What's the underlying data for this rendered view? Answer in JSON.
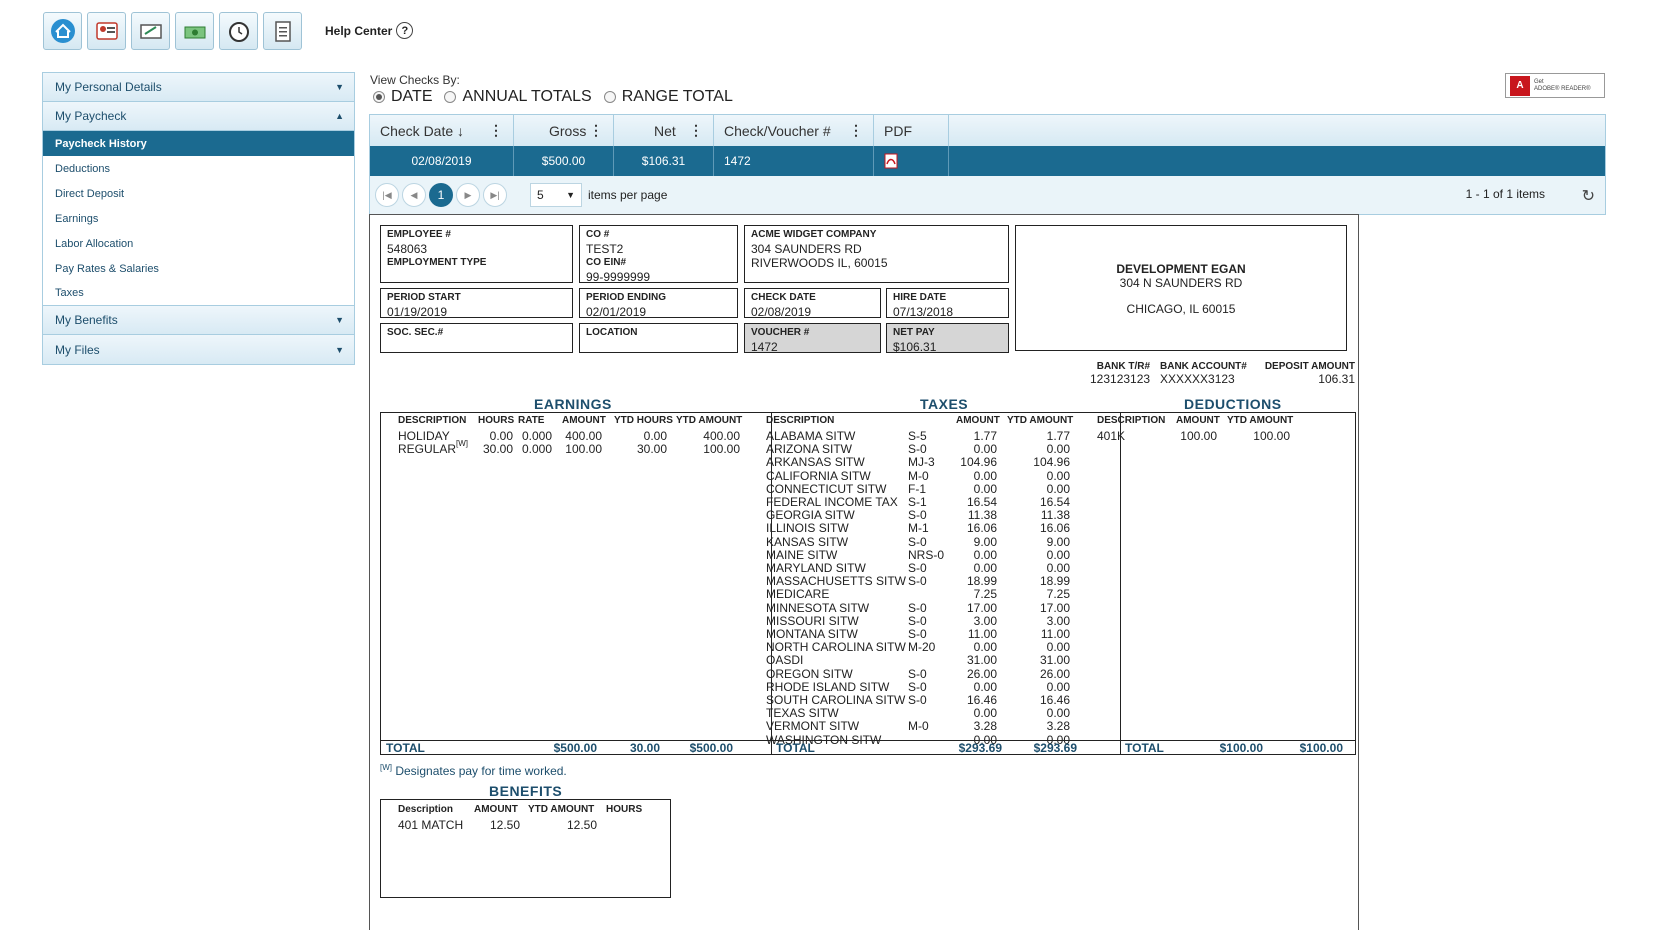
{
  "toolbar": {
    "icons": [
      "home-icon",
      "profile-icon",
      "paycheck-icon",
      "money-icon",
      "clock-icon",
      "clipboard-icon"
    ],
    "help_label": "Help Center",
    "help_glyph": "?"
  },
  "sidebar": {
    "sections": [
      {
        "label": "My Personal Details",
        "state": "collapsed"
      },
      {
        "label": "My Paycheck",
        "state": "expanded"
      },
      {
        "label": "My Benefits",
        "state": "collapsed"
      },
      {
        "label": "My Files",
        "state": "collapsed"
      }
    ],
    "paycheck_items": [
      "Paycheck History",
      "Deductions",
      "Direct Deposit",
      "Earnings",
      "Labor Allocation",
      "Pay Rates & Salaries",
      "Taxes"
    ],
    "active_item": "Paycheck History"
  },
  "view_by": {
    "label": "View Checks By:",
    "options": [
      "DATE",
      "ANNUAL TOTALS",
      "RANGE TOTAL"
    ],
    "selected": "DATE"
  },
  "adobe": {
    "get": "Get",
    "name": "ADOBE® READER®"
  },
  "grid": {
    "columns": [
      "Check Date",
      "Gross",
      "Net",
      "Check/Voucher #",
      "PDF"
    ],
    "row": {
      "date": "02/08/2019",
      "gross": "$500.00",
      "net": "$106.31",
      "voucher": "1472"
    },
    "pager": {
      "page": "1",
      "per_page": "5",
      "per_page_label": "items per page",
      "info": "1 - 1 of 1 items"
    }
  },
  "stub": {
    "employee": {
      "label": "EMPLOYEE #",
      "value": "548063",
      "type_label": "EMPLOYMENT TYPE"
    },
    "co": {
      "label": "CO #",
      "value": "TEST2",
      "ein_label": "CO EIN#",
      "ein": "99-9999999"
    },
    "company": {
      "name": "ACME WIDGET COMPANY",
      "line1": "304 SAUNDERS RD",
      "line2": "RIVERWOODS  IL,  60015"
    },
    "payee": {
      "name": "DEVELOPMENT EGAN",
      "line1": "304 N SAUNDERS RD",
      "line2": "CHICAGO, IL 60015"
    },
    "period_start": {
      "label": "PERIOD START",
      "value": "01/19/2019"
    },
    "period_ending": {
      "label": "PERIOD ENDING",
      "value": "02/01/2019"
    },
    "check_date": {
      "label": "CHECK DATE",
      "value": "02/08/2019"
    },
    "hire_date": {
      "label": "HIRE DATE",
      "value": "07/13/2018"
    },
    "ssn": {
      "label": "SOC. SEC.#"
    },
    "location": {
      "label": "LOCATION"
    },
    "voucher": {
      "label": "VOUCHER #",
      "value": "1472"
    },
    "net_pay": {
      "label": "NET PAY",
      "value": "$106.31"
    },
    "bank": {
      "tr_label": "BANK T/R#",
      "tr": "123123123",
      "acct_label": "BANK ACCOUNT#",
      "acct": "XXXXXX3123",
      "dep_label": "DEPOSIT AMOUNT",
      "dep": "106.31"
    }
  },
  "earnings": {
    "title": "EARNINGS",
    "headers": [
      "DESCRIPTION",
      "HOURS",
      "RATE",
      "AMOUNT",
      "YTD HOURS",
      "YTD AMOUNT"
    ],
    "rows": [
      {
        "desc": "HOLIDAY",
        "mark": "",
        "hours": "0.00",
        "rate": "0.000",
        "amount": "400.00",
        "ytd_hours": "0.00",
        "ytd_amount": "400.00"
      },
      {
        "desc": "REGULAR",
        "mark": "[W]",
        "hours": "30.00",
        "rate": "0.000",
        "amount": "100.00",
        "ytd_hours": "30.00",
        "ytd_amount": "100.00"
      }
    ],
    "total": {
      "label": "TOTAL",
      "amount": "$500.00",
      "hours": "30.00",
      "ytd": "$500.00"
    }
  },
  "taxes": {
    "title": "TAXES",
    "headers": [
      "DESCRIPTION",
      "AMOUNT",
      "YTD AMOUNT"
    ],
    "rows": [
      [
        "ALABAMA SITW",
        "S-5",
        "1.77",
        "1.77"
      ],
      [
        "ARIZONA SITW",
        "S-0",
        "0.00",
        "0.00"
      ],
      [
        "ARKANSAS SITW",
        "MJ-3",
        "104.96",
        "104.96"
      ],
      [
        "CALIFORNIA SITW",
        "M-0",
        "0.00",
        "0.00"
      ],
      [
        "CONNECTICUT SITW",
        "F-1",
        "0.00",
        "0.00"
      ],
      [
        "FEDERAL INCOME TAX",
        "S-1",
        "16.54",
        "16.54"
      ],
      [
        "GEORGIA SITW",
        "S-0",
        "11.38",
        "11.38"
      ],
      [
        "ILLINOIS SITW",
        "M-1",
        "16.06",
        "16.06"
      ],
      [
        "KANSAS SITW",
        "S-0",
        "9.00",
        "9.00"
      ],
      [
        "MAINE SITW",
        "NRS-0",
        "0.00",
        "0.00"
      ],
      [
        "MARYLAND SITW",
        "S-0",
        "0.00",
        "0.00"
      ],
      [
        "MASSACHUSETTS SITW",
        "S-0",
        "18.99",
        "18.99"
      ],
      [
        "MEDICARE",
        "",
        "7.25",
        "7.25"
      ],
      [
        "MINNESOTA SITW",
        "S-0",
        "17.00",
        "17.00"
      ],
      [
        "MISSOURI SITW",
        "S-0",
        "3.00",
        "3.00"
      ],
      [
        "MONTANA SITW",
        "S-0",
        "11.00",
        "11.00"
      ],
      [
        "NORTH CAROLINA SITW",
        "M-20",
        "0.00",
        "0.00"
      ],
      [
        "OASDI",
        "",
        "31.00",
        "31.00"
      ],
      [
        "OREGON SITW",
        "S-0",
        "26.00",
        "26.00"
      ],
      [
        "RHODE ISLAND SITW",
        "S-0",
        "0.00",
        "0.00"
      ],
      [
        "SOUTH CAROLINA SITW",
        "S-0",
        "16.46",
        "16.46"
      ],
      [
        "TEXAS SITW",
        "",
        "0.00",
        "0.00"
      ],
      [
        "VERMONT SITW",
        "M-0",
        "3.28",
        "3.28"
      ],
      [
        "WASHINGTON SITW",
        "",
        "0.00",
        "0.00"
      ]
    ],
    "total": {
      "label": "TOTAL",
      "amount": "$293.69",
      "ytd": "$293.69"
    }
  },
  "deductions": {
    "title": "DEDUCTIONS",
    "headers": [
      "DESCRIPTION",
      "AMOUNT",
      "YTD AMOUNT"
    ],
    "rows": [
      [
        "401K",
        "100.00",
        "100.00"
      ]
    ],
    "total": {
      "label": "TOTAL",
      "amount": "$100.00",
      "ytd": "$100.00"
    }
  },
  "note": {
    "mark": "[W]",
    "text": "Designates pay for time worked."
  },
  "benefits": {
    "title": "BENEFITS",
    "headers": [
      "Description",
      "AMOUNT",
      "YTD AMOUNT",
      "HOURS"
    ],
    "rows": [
      [
        "401 MATCH",
        "12.50",
        "12.50",
        ""
      ]
    ]
  }
}
